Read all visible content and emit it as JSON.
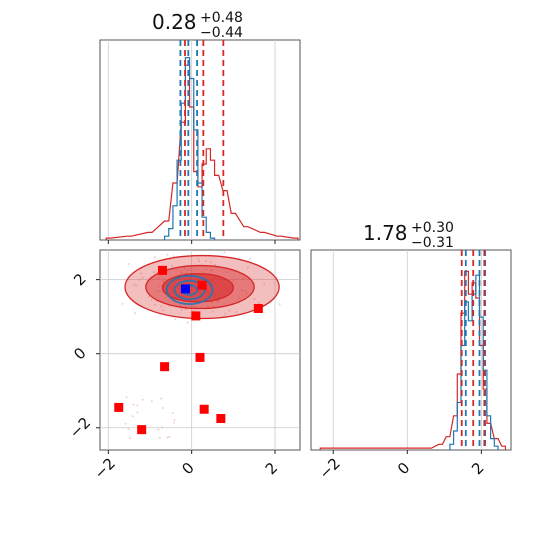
{
  "chart_data": {
    "type": "corner",
    "colors": {
      "blue": "#1f77b4",
      "red": "#d62728",
      "marker_red": "#ff0000",
      "marker_blue": "#0000ff"
    },
    "parameters": [
      {
        "title_median": "0.28",
        "title_plus": "+0.48",
        "title_minus": "−0.44",
        "range": [
          -2.2,
          2.6
        ]
      },
      {
        "title_median": "1.78",
        "title_plus": "+0.30",
        "title_minus": "−0.31",
        "range": [
          -2.6,
          2.8
        ]
      }
    ],
    "x_ticks": [
      {
        "value": -2,
        "label": "−2"
      },
      {
        "value": 0,
        "label": "0"
      },
      {
        "value": 2,
        "label": "2"
      }
    ],
    "y_ticks": [
      {
        "value": -2,
        "label": "−2"
      },
      {
        "value": 0,
        "label": "0"
      },
      {
        "value": 2,
        "label": "2"
      }
    ],
    "hist_1": {
      "quantiles_blue": [
        -0.27,
        -0.08,
        0.13
      ],
      "quantiles_red": [
        -0.16,
        0.28,
        0.76
      ],
      "blue_hist": [
        {
          "x": -0.6,
          "y": 0.02
        },
        {
          "x": -0.5,
          "y": 0.06
        },
        {
          "x": -0.4,
          "y": 0.18
        },
        {
          "x": -0.3,
          "y": 0.42
        },
        {
          "x": -0.2,
          "y": 0.72
        },
        {
          "x": -0.1,
          "y": 0.96
        },
        {
          "x": 0.0,
          "y": 0.85
        },
        {
          "x": 0.1,
          "y": 0.58
        },
        {
          "x": 0.2,
          "y": 0.3
        },
        {
          "x": 0.3,
          "y": 0.12
        },
        {
          "x": 0.4,
          "y": 0.04
        },
        {
          "x": 0.5,
          "y": 0.01
        }
      ],
      "red_hist": [
        {
          "x": -2.0,
          "y": 0.01
        },
        {
          "x": -1.5,
          "y": 0.02
        },
        {
          "x": -1.0,
          "y": 0.04
        },
        {
          "x": -0.6,
          "y": 0.1
        },
        {
          "x": -0.4,
          "y": 0.3
        },
        {
          "x": -0.2,
          "y": 0.62
        },
        {
          "x": -0.1,
          "y": 0.92
        },
        {
          "x": 0.0,
          "y": 0.7
        },
        {
          "x": 0.1,
          "y": 0.36
        },
        {
          "x": 0.2,
          "y": 0.28
        },
        {
          "x": 0.3,
          "y": 0.4
        },
        {
          "x": 0.4,
          "y": 0.48
        },
        {
          "x": 0.5,
          "y": 0.42
        },
        {
          "x": 0.6,
          "y": 0.34
        },
        {
          "x": 0.8,
          "y": 0.26
        },
        {
          "x": 1.0,
          "y": 0.14
        },
        {
          "x": 1.3,
          "y": 0.07
        },
        {
          "x": 1.7,
          "y": 0.04
        },
        {
          "x": 2.1,
          "y": 0.02
        },
        {
          "x": 2.5,
          "y": 0.01
        }
      ]
    },
    "hist_2": {
      "quantiles_blue": [
        1.58,
        1.95,
        2.1
      ],
      "quantiles_red": [
        1.47,
        1.78,
        2.08
      ],
      "blue_hist": [
        {
          "x": 1.2,
          "y": 0.03
        },
        {
          "x": 1.3,
          "y": 0.1
        },
        {
          "x": 1.4,
          "y": 0.25
        },
        {
          "x": 1.5,
          "y": 0.55
        },
        {
          "x": 1.6,
          "y": 0.78
        },
        {
          "x": 1.7,
          "y": 0.68
        },
        {
          "x": 1.8,
          "y": 0.82
        },
        {
          "x": 1.9,
          "y": 0.92
        },
        {
          "x": 2.0,
          "y": 0.7
        },
        {
          "x": 2.1,
          "y": 0.42
        },
        {
          "x": 2.2,
          "y": 0.18
        },
        {
          "x": 2.3,
          "y": 0.06
        },
        {
          "x": 2.4,
          "y": 0.02
        }
      ],
      "red_hist": [
        {
          "x": -2.3,
          "y": 0.01
        },
        {
          "x": -2.1,
          "y": 0.01
        },
        {
          "x": 0.6,
          "y": 0.01
        },
        {
          "x": 0.9,
          "y": 0.03
        },
        {
          "x": 1.1,
          "y": 0.07
        },
        {
          "x": 1.3,
          "y": 0.18
        },
        {
          "x": 1.4,
          "y": 0.4
        },
        {
          "x": 1.5,
          "y": 0.72
        },
        {
          "x": 1.6,
          "y": 0.94
        },
        {
          "x": 1.7,
          "y": 0.82
        },
        {
          "x": 1.8,
          "y": 0.88
        },
        {
          "x": 1.9,
          "y": 0.8
        },
        {
          "x": 2.0,
          "y": 0.55
        },
        {
          "x": 2.1,
          "y": 0.32
        },
        {
          "x": 2.2,
          "y": 0.14
        },
        {
          "x": 2.4,
          "y": 0.06
        },
        {
          "x": 2.6,
          "y": 0.02
        }
      ]
    },
    "scatter_red_squares": [
      {
        "x": -0.7,
        "y": 2.25
      },
      {
        "x": 0.25,
        "y": 1.85
      },
      {
        "x": 0.1,
        "y": 1.02
      },
      {
        "x": 1.6,
        "y": 1.22
      },
      {
        "x": 0.2,
        "y": -0.1
      },
      {
        "x": -0.65,
        "y": -0.35
      },
      {
        "x": -1.75,
        "y": -1.45
      },
      {
        "x": 0.3,
        "y": -1.5
      },
      {
        "x": 0.7,
        "y": -1.75
      },
      {
        "x": -1.2,
        "y": -2.05
      }
    ],
    "scatter_blue_square": {
      "x": -0.15,
      "y": 1.75
    },
    "contours_red": [
      {
        "cx": 0.25,
        "cy": 1.8,
        "rx": 1.85,
        "ry": 0.85,
        "opacity": 0.3
      },
      {
        "cx": 0.2,
        "cy": 1.8,
        "rx": 1.3,
        "ry": 0.58,
        "opacity": 0.45
      },
      {
        "cx": 0.15,
        "cy": 1.78,
        "rx": 0.85,
        "ry": 0.38,
        "opacity": 0.6
      }
    ],
    "contours_blue": [
      {
        "cx": -0.05,
        "cy": 1.72,
        "rx": 0.55,
        "ry": 0.38
      },
      {
        "cx": -0.05,
        "cy": 1.72,
        "rx": 0.36,
        "ry": 0.25
      },
      {
        "cx": -0.05,
        "cy": 1.72,
        "rx": 0.18,
        "ry": 0.13
      }
    ]
  }
}
